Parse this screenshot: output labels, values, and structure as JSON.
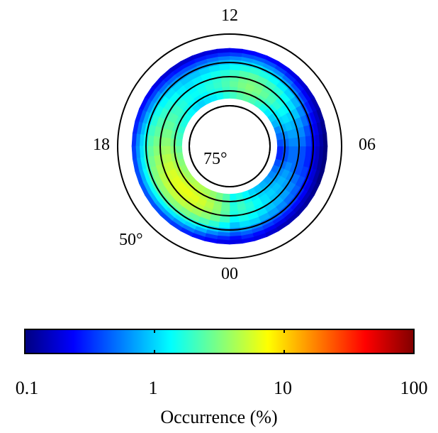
{
  "chart_data": {
    "type": "heatmap",
    "projection": "polar-mlt-mlat",
    "mlt_labels": {
      "top": "12",
      "right": "06",
      "bottom": "00",
      "left": "18"
    },
    "mlat_labels": [
      "75°",
      "50°"
    ],
    "mlat_circles": [
      80,
      75,
      70,
      65,
      50
    ],
    "colorbar": {
      "scale": "log",
      "range": [
        0.1,
        100
      ],
      "ticks": [
        "0.1",
        "1",
        "10",
        "100"
      ],
      "label": "Occurrence (%)",
      "colormap": "jet"
    },
    "value_units": "percent occurrence",
    "mlat_bins": [
      {
        "mlat": 76.5,
        "values": [
          1.4,
          1.6,
          1.3,
          1.0,
          0.9,
          0.8,
          0.7,
          0.6,
          0.5,
          0.4,
          0.3,
          0.3,
          0.4,
          0.5,
          0.6,
          0.8,
          1.0,
          1.2,
          1.5,
          1.9,
          2.2,
          2.5,
          2.3,
          2.0,
          1.7,
          1.4,
          1.2,
          1.1,
          1.0,
          1.1,
          1.3,
          1.5,
          1.6,
          1.8,
          2.0,
          2.2,
          2.6,
          3.0,
          3.3,
          3.6,
          3.9,
          4.2,
          4.5,
          4.4,
          4.1,
          3.6,
          3.0,
          2.3
        ]
      },
      {
        "mlat": 74.5,
        "values": [
          1.6,
          1.9,
          1.5,
          1.2,
          1.0,
          0.9,
          0.8,
          0.7,
          0.6,
          0.5,
          0.4,
          0.4,
          0.5,
          0.6,
          0.8,
          1.0,
          1.2,
          1.5,
          1.9,
          2.3,
          2.7,
          3.0,
          2.7,
          2.3,
          2.0,
          1.7,
          1.5,
          1.3,
          1.2,
          1.3,
          1.5,
          1.8,
          2.0,
          2.2,
          2.5,
          2.9,
          3.4,
          3.9,
          4.4,
          4.8,
          5.2,
          5.5,
          5.7,
          5.4,
          4.9,
          4.2,
          3.4,
          2.5
        ]
      },
      {
        "mlat": 72.5,
        "values": [
          1.7,
          2.0,
          1.7,
          1.4,
          1.1,
          1.0,
          0.9,
          0.8,
          0.7,
          0.6,
          0.5,
          0.5,
          0.6,
          0.7,
          0.9,
          1.1,
          1.4,
          1.8,
          2.2,
          2.6,
          3.0,
          3.3,
          3.0,
          2.6,
          2.2,
          1.9,
          1.7,
          1.5,
          1.4,
          1.5,
          1.7,
          2.0,
          2.3,
          2.6,
          3.0,
          3.4,
          4.0,
          4.6,
          5.2,
          5.8,
          6.2,
          6.5,
          6.6,
          6.2,
          5.5,
          4.6,
          3.6,
          2.6
        ]
      },
      {
        "mlat": 70.5,
        "values": [
          1.6,
          1.8,
          1.6,
          1.3,
          1.1,
          0.9,
          0.8,
          0.7,
          0.6,
          0.5,
          0.5,
          0.5,
          0.6,
          0.7,
          0.8,
          1.0,
          1.3,
          1.6,
          2.0,
          2.4,
          2.8,
          3.0,
          2.8,
          2.4,
          2.1,
          1.8,
          1.6,
          1.4,
          1.3,
          1.4,
          1.6,
          1.9,
          2.2,
          2.5,
          2.9,
          3.3,
          3.8,
          4.4,
          5.0,
          5.5,
          5.9,
          6.1,
          6.0,
          5.6,
          5.0,
          4.2,
          3.3,
          2.4
        ]
      },
      {
        "mlat": 68.5,
        "values": [
          1.3,
          1.5,
          1.3,
          1.1,
          0.9,
          0.8,
          0.7,
          0.6,
          0.5,
          0.4,
          0.4,
          0.4,
          0.5,
          0.6,
          0.7,
          0.9,
          1.1,
          1.4,
          1.7,
          2.0,
          2.3,
          2.5,
          2.3,
          2.0,
          1.7,
          1.5,
          1.3,
          1.2,
          1.1,
          1.2,
          1.4,
          1.6,
          1.9,
          2.2,
          2.5,
          2.9,
          3.3,
          3.8,
          4.2,
          4.6,
          4.9,
          5.0,
          4.9,
          4.5,
          4.0,
          3.4,
          2.7,
          2.0
        ]
      },
      {
        "mlat": 66.5,
        "values": [
          0.9,
          1.1,
          1.0,
          0.8,
          0.7,
          0.6,
          0.5,
          0.45,
          0.4,
          0.35,
          0.3,
          0.3,
          0.35,
          0.4,
          0.5,
          0.6,
          0.8,
          1.0,
          1.2,
          1.4,
          1.6,
          1.8,
          1.6,
          1.4,
          1.2,
          1.1,
          1.0,
          0.9,
          0.9,
          1.0,
          1.1,
          1.3,
          1.5,
          1.7,
          2.0,
          2.3,
          2.6,
          2.9,
          3.2,
          3.4,
          3.5,
          3.5,
          3.3,
          3.0,
          2.6,
          2.2,
          1.8,
          1.3
        ]
      },
      {
        "mlat": 64.5,
        "values": [
          0.6,
          0.7,
          0.6,
          0.5,
          0.45,
          0.4,
          0.35,
          0.3,
          0.25,
          0.22,
          0.2,
          0.2,
          0.22,
          0.25,
          0.3,
          0.4,
          0.5,
          0.6,
          0.75,
          0.9,
          1.0,
          1.1,
          1.0,
          0.9,
          0.8,
          0.7,
          0.65,
          0.6,
          0.6,
          0.65,
          0.75,
          0.85,
          1.0,
          1.1,
          1.3,
          1.5,
          1.7,
          1.9,
          2.1,
          2.2,
          2.2,
          2.1,
          2.0,
          1.8,
          1.6,
          1.3,
          1.0,
          0.8
        ]
      },
      {
        "mlat": 62.5,
        "values": [
          0.4,
          0.45,
          0.4,
          0.35,
          0.3,
          0.28,
          0.25,
          0.22,
          0.2,
          0.18,
          0.16,
          0.16,
          0.18,
          0.2,
          0.22,
          0.28,
          0.33,
          0.4,
          0.5,
          0.6,
          0.65,
          0.7,
          0.65,
          0.6,
          0.55,
          0.5,
          0.45,
          0.42,
          0.42,
          0.45,
          0.5,
          0.6,
          0.65,
          0.75,
          0.85,
          1.0,
          1.1,
          1.2,
          1.3,
          1.4,
          1.4,
          1.3,
          1.2,
          1.1,
          1.0,
          0.8,
          0.6,
          0.5
        ]
      },
      {
        "mlat": 60.5,
        "values": [
          0.25,
          0.3,
          0.25,
          0.22,
          0.2,
          0.18,
          0.16,
          0.15,
          0.14,
          0.13,
          0.12,
          0.12,
          0.13,
          0.14,
          0.16,
          0.18,
          0.22,
          0.26,
          0.3,
          0.35,
          0.4,
          0.42,
          0.4,
          0.36,
          0.33,
          0.3,
          0.28,
          0.26,
          0.26,
          0.28,
          0.32,
          0.36,
          0.4,
          0.45,
          0.5,
          0.6,
          0.65,
          0.7,
          0.75,
          0.8,
          0.8,
          0.75,
          0.7,
          0.6,
          0.55,
          0.45,
          0.35,
          0.3
        ]
      },
      {
        "mlat": 58.5,
        "values": [
          0.2,
          0.22,
          0.2,
          0.17,
          0.15,
          0.14,
          0.13,
          0.12,
          0.11,
          0.1,
          0.1,
          0.1,
          0.1,
          0.11,
          0.12,
          0.14,
          0.16,
          0.18,
          0.2,
          0.22,
          0.24,
          0.25,
          0.24,
          0.22,
          0.2,
          0.19,
          0.18,
          0.17,
          0.17,
          0.18,
          0.2,
          0.22,
          0.25,
          0.28,
          0.3,
          0.33,
          0.36,
          0.38,
          0.4,
          0.42,
          0.42,
          0.4,
          0.38,
          0.35,
          0.3,
          0.27,
          0.24,
          0.21
        ]
      }
    ]
  }
}
